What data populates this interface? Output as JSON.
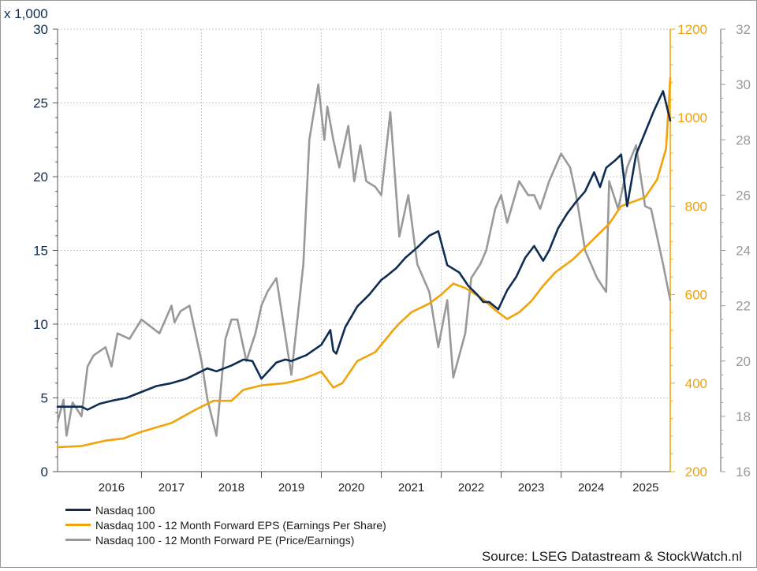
{
  "chart_data": {
    "type": "line",
    "source": "Source: LSEG Datastream & StockWatch.nl",
    "colors": {
      "ndx": "#0d2d52",
      "eps": "#f0a30a",
      "pe": "#999999",
      "grid": "#c8c8c8"
    },
    "axes": {
      "left": {
        "unit_label": "x 1,000",
        "range": [
          0,
          30
        ],
        "ticks": [
          "0",
          "5",
          "10",
          "15",
          "20",
          "25",
          "30"
        ]
      },
      "right1": {
        "range": [
          200,
          1200
        ],
        "ticks": [
          "200",
          "400",
          "600",
          "800",
          "1000",
          "1200"
        ]
      },
      "right2": {
        "range": [
          16,
          32
        ],
        "ticks": [
          "16",
          "18",
          "20",
          "22",
          "24",
          "26",
          "28",
          "30",
          "32"
        ]
      },
      "x": {
        "range": [
          2015.6,
          2025.82
        ],
        "tick_labels": [
          "2016",
          "2017",
          "2018",
          "2019",
          "2020",
          "2021",
          "2022",
          "2023",
          "2024",
          "2025"
        ]
      }
    },
    "grid": true,
    "legend_position": "bottom-left",
    "series": [
      {
        "name": "Nasdaq 100",
        "key": "ndx",
        "axis": "left",
        "x": [
          2015.6,
          2015.75,
          2016.0,
          2016.1,
          2016.3,
          2016.5,
          2016.75,
          2017.0,
          2017.25,
          2017.5,
          2017.75,
          2018.0,
          2018.1,
          2018.25,
          2018.5,
          2018.7,
          2018.85,
          2019.0,
          2019.25,
          2019.4,
          2019.5,
          2019.75,
          2020.0,
          2020.15,
          2020.2,
          2020.25,
          2020.4,
          2020.6,
          2020.7,
          2020.8,
          2021.0,
          2021.1,
          2021.25,
          2021.4,
          2021.6,
          2021.8,
          2021.95,
          2022.1,
          2022.3,
          2022.45,
          2022.6,
          2022.7,
          2022.8,
          2022.95,
          2023.1,
          2023.25,
          2023.4,
          2023.55,
          2023.7,
          2023.8,
          2023.95,
          2024.1,
          2024.25,
          2024.4,
          2024.55,
          2024.65,
          2024.75,
          2024.9,
          2025.0,
          2025.1,
          2025.25,
          2025.4,
          2025.55,
          2025.7,
          2025.82
        ],
        "y": [
          4.4,
          4.4,
          4.4,
          4.2,
          4.6,
          4.8,
          5.0,
          5.4,
          5.8,
          6.0,
          6.3,
          6.8,
          7.0,
          6.8,
          7.2,
          7.6,
          7.5,
          6.3,
          7.4,
          7.6,
          7.5,
          7.9,
          8.6,
          9.6,
          8.2,
          8.0,
          9.8,
          11.2,
          11.6,
          12.0,
          13.0,
          13.3,
          13.8,
          14.5,
          15.2,
          16.0,
          16.3,
          14.0,
          13.5,
          12.6,
          12.0,
          11.5,
          11.5,
          11.0,
          12.3,
          13.2,
          14.5,
          15.3,
          14.3,
          15.0,
          16.5,
          17.5,
          18.3,
          19.0,
          20.3,
          19.3,
          20.6,
          21.1,
          21.5,
          18.0,
          21.5,
          23.0,
          24.5,
          25.8,
          23.8
        ]
      },
      {
        "name": "Nasdaq 100 - 12 Month Forward EPS (Earnings Per Share)",
        "key": "eps",
        "axis": "right1",
        "x": [
          2015.6,
          2016.0,
          2016.4,
          2016.7,
          2017.0,
          2017.5,
          2017.9,
          2018.2,
          2018.5,
          2018.7,
          2019.0,
          2019.4,
          2019.7,
          2020.0,
          2020.2,
          2020.35,
          2020.6,
          2020.9,
          2021.2,
          2021.3,
          2021.5,
          2021.8,
          2022.0,
          2022.2,
          2022.4,
          2022.7,
          2022.9,
          2023.1,
          2023.3,
          2023.5,
          2023.7,
          2023.9,
          2024.2,
          2024.5,
          2024.8,
          2025.0,
          2025.2,
          2025.4,
          2025.6,
          2025.75,
          2025.82
        ],
        "y": [
          255,
          258,
          270,
          275,
          290,
          310,
          340,
          360,
          360,
          385,
          395,
          400,
          410,
          426,
          390,
          400,
          450,
          470,
          520,
          535,
          560,
          580,
          600,
          625,
          615,
          590,
          565,
          545,
          560,
          585,
          620,
          650,
          680,
          720,
          760,
          800,
          810,
          820,
          860,
          930,
          1090
        ]
      },
      {
        "name": "Nasdaq 100 - 12 Month Forward PE (Price/Earnings)",
        "key": "pe",
        "axis": "right2",
        "x": [
          2015.6,
          2015.7,
          2015.75,
          2015.85,
          2016.0,
          2016.1,
          2016.2,
          2016.4,
          2016.5,
          2016.6,
          2016.8,
          2017.0,
          2017.3,
          2017.5,
          2017.55,
          2017.65,
          2017.8,
          2018.0,
          2018.1,
          2018.25,
          2018.4,
          2018.5,
          2018.6,
          2018.75,
          2018.9,
          2019.0,
          2019.1,
          2019.25,
          2019.5,
          2019.7,
          2019.8,
          2019.95,
          2020.05,
          2020.1,
          2020.2,
          2020.3,
          2020.45,
          2020.55,
          2020.65,
          2020.75,
          2020.9,
          2021.0,
          2021.15,
          2021.3,
          2021.45,
          2021.6,
          2021.8,
          2021.95,
          2022.1,
          2022.2,
          2022.4,
          2022.5,
          2022.65,
          2022.75,
          2022.9,
          2023.0,
          2023.1,
          2023.3,
          2023.45,
          2023.55,
          2023.65,
          2023.8,
          2024.0,
          2024.15,
          2024.25,
          2024.4,
          2024.6,
          2024.75,
          2024.8,
          2024.95,
          2025.1,
          2025.25,
          2025.4,
          2025.5,
          2025.6,
          2025.7,
          2025.82
        ],
        "y": [
          17.8,
          18.6,
          17.3,
          18.5,
          18.0,
          19.8,
          20.2,
          20.5,
          19.8,
          21.0,
          20.8,
          21.5,
          21.0,
          22.0,
          21.4,
          21.8,
          22.0,
          20.0,
          18.6,
          17.3,
          20.8,
          21.5,
          21.5,
          20.0,
          21.0,
          22.0,
          22.5,
          23.0,
          19.5,
          23.5,
          28.0,
          30.0,
          28.0,
          29.2,
          28.0,
          27.0,
          28.5,
          26.5,
          27.8,
          26.5,
          26.3,
          26.0,
          29.0,
          24.5,
          26.0,
          23.5,
          22.5,
          20.5,
          22.2,
          19.4,
          21.0,
          23.0,
          23.5,
          24.0,
          25.5,
          26.0,
          25.0,
          26.5,
          26.0,
          26.0,
          25.5,
          26.5,
          27.5,
          27.0,
          26.0,
          24.0,
          23.0,
          22.5,
          26.5,
          25.5,
          27.0,
          27.8,
          25.6,
          25.5,
          24.5,
          23.5,
          22.2
        ]
      }
    ]
  }
}
